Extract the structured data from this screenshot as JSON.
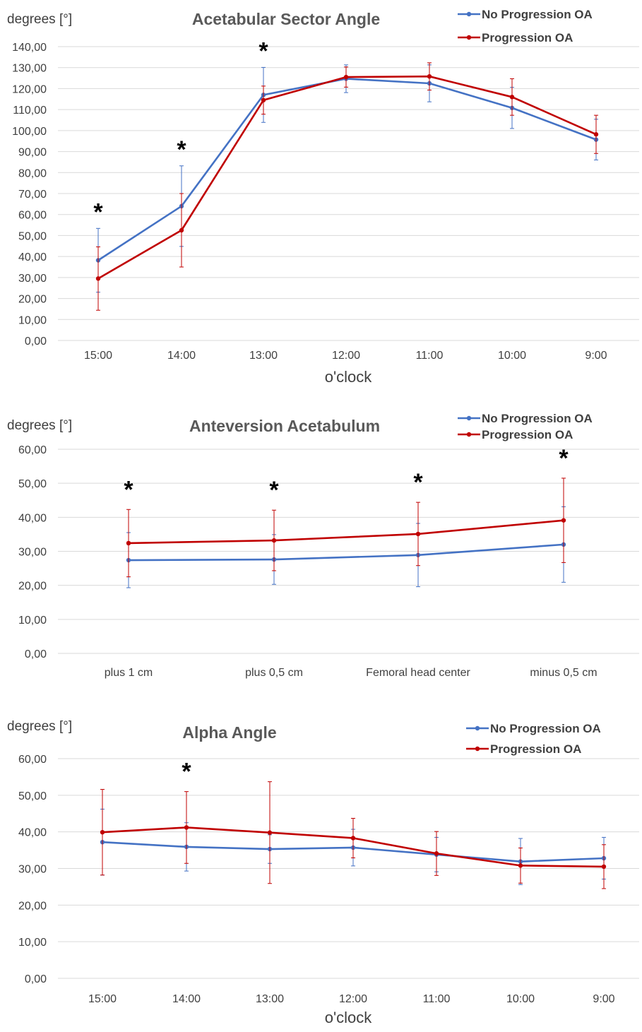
{
  "colors": {
    "no_progression": "#4472c4",
    "progression": "#c00000"
  },
  "chart_data": [
    {
      "type": "line",
      "title": "Acetabular Sector Angle",
      "ylabel": "degrees [°]",
      "xlabel": "o'clock",
      "legend_position": "top-right",
      "grid": true,
      "categories": [
        "15:00",
        "14:00",
        "13:00",
        "12:00",
        "11:00",
        "10:00",
        "9:00"
      ],
      "ylim": [
        0,
        140
      ],
      "ystep": 10,
      "ytick_labels": [
        "0,00",
        "10,00",
        "20,00",
        "30,00",
        "40,00",
        "50,00",
        "60,00",
        "70,00",
        "80,00",
        "90,00",
        "100,00",
        "110,00",
        "120,00",
        "130,00",
        "140,00"
      ],
      "series": [
        {
          "name": "No Progression OA",
          "values": [
            38.2,
            64.0,
            117.0,
            124.7,
            122.5,
            110.8,
            95.7
          ],
          "errors": [
            15.2,
            19.2,
            13.1,
            6.6,
            8.8,
            9.8,
            9.7
          ]
        },
        {
          "name": "Progression OA",
          "values": [
            29.5,
            52.5,
            114.5,
            125.5,
            125.8,
            116.0,
            98.2
          ],
          "errors": [
            15.1,
            17.5,
            6.7,
            4.8,
            6.5,
            8.7,
            9.1
          ]
        }
      ],
      "significance_marker": "*",
      "significant_categories": [
        "15:00",
        "14:00",
        "13:00"
      ]
    },
    {
      "type": "line",
      "title": "Anteversion Acetabulum",
      "ylabel": "degrees [°]",
      "xlabel": "",
      "legend_position": "top-right",
      "grid": true,
      "categories": [
        "plus 1 cm",
        "plus 0,5 cm",
        "Femoral head center",
        "minus 0,5 cm"
      ],
      "ylim": [
        0,
        60
      ],
      "ystep": 10,
      "ytick_labels": [
        "0,00",
        "10,00",
        "20,00",
        "30,00",
        "40,00",
        "50,00",
        "60,00"
      ],
      "series": [
        {
          "name": "No Progression OA",
          "values": [
            27.4,
            27.6,
            28.9,
            32.0
          ],
          "errors": [
            8.1,
            7.3,
            9.3,
            11.1
          ]
        },
        {
          "name": "Progression OA",
          "values": [
            32.4,
            33.2,
            35.1,
            39.1
          ],
          "errors": [
            9.9,
            8.9,
            9.3,
            12.4
          ]
        }
      ],
      "significance_marker": "*",
      "significant_categories": [
        "plus 1 cm",
        "plus 0,5 cm",
        "Femoral head center",
        "minus 0,5 cm"
      ]
    },
    {
      "type": "line",
      "title": "Alpha Angle",
      "ylabel": "degrees [°]",
      "xlabel": "o'clock",
      "legend_position": "top-right",
      "grid": true,
      "categories": [
        "15:00",
        "14:00",
        "13:00",
        "12:00",
        "11:00",
        "10:00",
        "9:00"
      ],
      "ylim": [
        0,
        60
      ],
      "ystep": 10,
      "ytick_labels": [
        "0,00",
        "10,00",
        "20,00",
        "30,00",
        "40,00",
        "50,00",
        "60,00"
      ],
      "series": [
        {
          "name": "No Progression OA",
          "values": [
            37.2,
            35.9,
            35.3,
            35.7,
            33.8,
            31.9,
            32.8
          ],
          "errors": [
            9.0,
            6.6,
            3.9,
            5.0,
            4.7,
            6.3,
            5.7
          ]
        },
        {
          "name": "Progression OA",
          "values": [
            39.9,
            41.2,
            39.8,
            38.3,
            34.1,
            30.8,
            30.5
          ],
          "errors": [
            11.7,
            9.8,
            13.9,
            5.4,
            6.0,
            4.8,
            6.0
          ]
        }
      ],
      "significance_marker": "*",
      "significant_categories": [
        "14:00"
      ]
    }
  ]
}
